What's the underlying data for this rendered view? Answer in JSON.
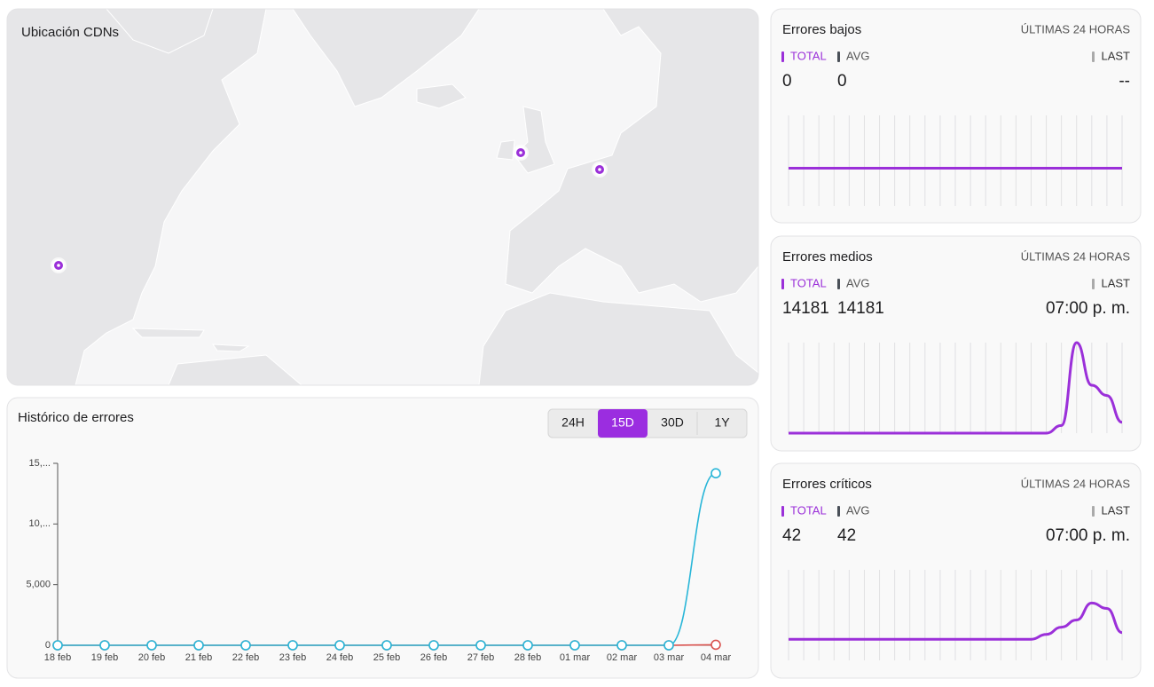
{
  "map": {
    "title": "Ubicación CDNs"
  },
  "history": {
    "title": "Histórico de errores",
    "ranges": [
      "24H",
      "15D",
      "30D",
      "1Y"
    ],
    "active_range": 1,
    "chart_data": {
      "type": "line",
      "categories": [
        "18 feb",
        "19 feb",
        "20 feb",
        "21 feb",
        "22 feb",
        "23 feb",
        "24 feb",
        "25 feb",
        "26 feb",
        "27 feb",
        "28 feb",
        "01 mar",
        "02 mar",
        "03 mar",
        "04 mar"
      ],
      "series": [
        {
          "color": "#d9534f",
          "values": [
            0,
            0,
            0,
            0,
            0,
            0,
            0,
            0,
            0,
            0,
            0,
            0,
            0,
            0,
            42
          ]
        },
        {
          "color": "#29b6d8",
          "values": [
            0,
            0,
            0,
            0,
            0,
            0,
            0,
            0,
            0,
            0,
            0,
            0,
            0,
            0,
            14181
          ]
        }
      ],
      "ylim": [
        0,
        15000
      ],
      "yticks": [
        0,
        {
          "value": 5000,
          "label": "5,000"
        },
        {
          "value": 10000,
          "label": "10,..."
        },
        {
          "value": 15000,
          "label": "15,..."
        }
      ]
    }
  },
  "cards": [
    {
      "title": "Errores bajos",
      "period": "ÚLTIMAS 24 HORAS",
      "legend": [
        "TOTAL",
        "AVG",
        "LAST"
      ],
      "total": 0,
      "avg": 0,
      "last": "--",
      "chart_data": {
        "type": "line",
        "color": "#9b30d9",
        "ylim": [
          -1,
          1.4
        ],
        "values": [
          0,
          0,
          0,
          0,
          0,
          0,
          0,
          0,
          0,
          0,
          0,
          0,
          0,
          0,
          0,
          0,
          0,
          0,
          0,
          0,
          0,
          0,
          0
        ]
      }
    },
    {
      "title": "Errores medios",
      "period": "ÚLTIMAS 24 HORAS",
      "legend": [
        "TOTAL",
        "AVG",
        "LAST"
      ],
      "total": 14181,
      "avg": 14181,
      "last": "07:00 p. m.",
      "chart_data": {
        "type": "line",
        "color": "#9b30d9",
        "ylim": [
          0,
          14181
        ],
        "values": [
          0,
          0,
          0,
          0,
          0,
          0,
          0,
          0,
          0,
          0,
          0,
          0,
          0,
          0,
          0,
          0,
          0,
          0,
          1200,
          14181,
          7500,
          5900,
          1700
        ]
      }
    },
    {
      "title": "Errores críticos",
      "period": "ÚLTIMAS 24 HORAS",
      "legend": [
        "TOTAL",
        "AVG",
        "LAST"
      ],
      "total": 42,
      "avg": 42,
      "last": "07:00 p. m.",
      "chart_data": {
        "type": "line",
        "color": "#9b30d9",
        "ylim": [
          0,
          30
        ],
        "values": [
          7,
          7,
          7,
          7,
          7,
          7,
          7,
          7,
          7,
          7,
          7,
          7,
          7,
          7,
          7,
          7,
          7,
          8.6,
          11,
          13.4,
          19,
          17.2,
          9.2
        ]
      }
    }
  ]
}
